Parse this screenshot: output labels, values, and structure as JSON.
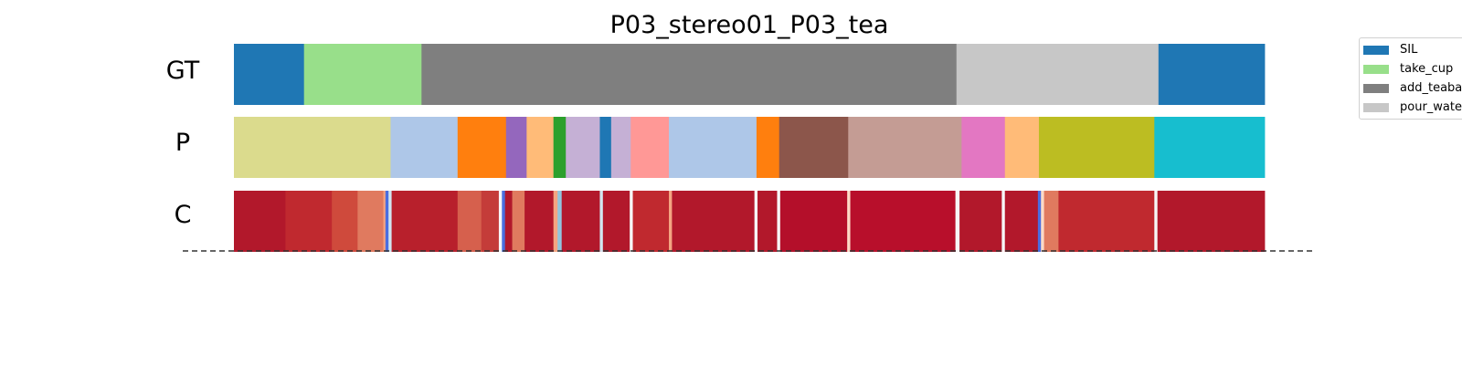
{
  "chart_data": {
    "type": "segmentation",
    "title": "P03_stereo01_P03_tea",
    "xlim": [
      0,
      1000
    ],
    "rows": [
      {
        "label": "GT",
        "segments": [
          {
            "start": 0,
            "end": 68,
            "color": "#1f77b4"
          },
          {
            "start": 68,
            "end": 182,
            "color": "#98df8a"
          },
          {
            "start": 182,
            "end": 701,
            "color": "#7f7f7f"
          },
          {
            "start": 701,
            "end": 897,
            "color": "#c7c7c7"
          },
          {
            "start": 897,
            "end": 1000,
            "color": "#1f77b4"
          }
        ]
      },
      {
        "label": "P",
        "segments": [
          {
            "start": 0,
            "end": 152,
            "color": "#dbdb8d"
          },
          {
            "start": 152,
            "end": 217,
            "color": "#aec7e8"
          },
          {
            "start": 217,
            "end": 264,
            "color": "#ff7f0e"
          },
          {
            "start": 264,
            "end": 284,
            "color": "#9467bd"
          },
          {
            "start": 284,
            "end": 310,
            "color": "#ffbb78"
          },
          {
            "start": 310,
            "end": 322,
            "color": "#2ca02c"
          },
          {
            "start": 322,
            "end": 355,
            "color": "#c5b0d5"
          },
          {
            "start": 355,
            "end": 366,
            "color": "#1f77b4"
          },
          {
            "start": 366,
            "end": 385,
            "color": "#c5b0d5"
          },
          {
            "start": 385,
            "end": 422,
            "color": "#ff9896"
          },
          {
            "start": 422,
            "end": 507,
            "color": "#aec7e8"
          },
          {
            "start": 507,
            "end": 529,
            "color": "#ff7f0e"
          },
          {
            "start": 529,
            "end": 596,
            "color": "#8c564b"
          },
          {
            "start": 596,
            "end": 706,
            "color": "#c49c94"
          },
          {
            "start": 706,
            "end": 748,
            "color": "#e377c2"
          },
          {
            "start": 748,
            "end": 781,
            "color": "#ffbb78"
          },
          {
            "start": 781,
            "end": 893,
            "color": "#bcbd22"
          },
          {
            "start": 893,
            "end": 1000,
            "color": "#17becf"
          }
        ]
      },
      {
        "label": "C",
        "segments": [
          {
            "start": 0,
            "end": 50,
            "color": "#b2182b"
          },
          {
            "start": 50,
            "end": 95,
            "color": "#c0292f"
          },
          {
            "start": 95,
            "end": 120,
            "color": "#cf4a3c"
          },
          {
            "start": 120,
            "end": 145,
            "color": "#e07a5f"
          },
          {
            "start": 145,
            "end": 147,
            "color": "#f4a582"
          },
          {
            "start": 147,
            "end": 150,
            "color": "#4a6ee0"
          },
          {
            "start": 150,
            "end": 153,
            "color": "#d1e5f0"
          },
          {
            "start": 153,
            "end": 217,
            "color": "#b8202c"
          },
          {
            "start": 217,
            "end": 240,
            "color": "#d6604d"
          },
          {
            "start": 240,
            "end": 257,
            "color": "#c43c39"
          },
          {
            "start": 257,
            "end": 260,
            "color": "#f7f7f7"
          },
          {
            "start": 260,
            "end": 263,
            "color": "#4a6ee0"
          },
          {
            "start": 263,
            "end": 270,
            "color": "#b2182b"
          },
          {
            "start": 270,
            "end": 282,
            "color": "#e07a5f"
          },
          {
            "start": 282,
            "end": 310,
            "color": "#b2182b"
          },
          {
            "start": 310,
            "end": 314,
            "color": "#f4a582"
          },
          {
            "start": 314,
            "end": 318,
            "color": "#92c5de"
          },
          {
            "start": 318,
            "end": 355,
            "color": "#b2182b"
          },
          {
            "start": 355,
            "end": 358,
            "color": "#d1e5f0"
          },
          {
            "start": 358,
            "end": 384,
            "color": "#b2182b"
          },
          {
            "start": 384,
            "end": 387,
            "color": "#f7f7f7"
          },
          {
            "start": 387,
            "end": 422,
            "color": "#c0292f"
          },
          {
            "start": 422,
            "end": 425,
            "color": "#f4a582"
          },
          {
            "start": 425,
            "end": 505,
            "color": "#b2182b"
          },
          {
            "start": 505,
            "end": 508,
            "color": "#f7f7f7"
          },
          {
            "start": 508,
            "end": 527,
            "color": "#b2182b"
          },
          {
            "start": 527,
            "end": 530,
            "color": "#f7f7f7"
          },
          {
            "start": 530,
            "end": 595,
            "color": "#b40f2a"
          },
          {
            "start": 595,
            "end": 598,
            "color": "#fddbc7"
          },
          {
            "start": 598,
            "end": 700,
            "color": "#b80f2b"
          },
          {
            "start": 700,
            "end": 704,
            "color": "#f7f7f7"
          },
          {
            "start": 704,
            "end": 745,
            "color": "#b2182b"
          },
          {
            "start": 745,
            "end": 748,
            "color": "#f7f7f7"
          },
          {
            "start": 748,
            "end": 780,
            "color": "#b2182b"
          },
          {
            "start": 780,
            "end": 783,
            "color": "#4a6ee0"
          },
          {
            "start": 783,
            "end": 786,
            "color": "#fddbc7"
          },
          {
            "start": 786,
            "end": 800,
            "color": "#e07a5f"
          },
          {
            "start": 800,
            "end": 893,
            "color": "#c0292f"
          },
          {
            "start": 893,
            "end": 896,
            "color": "#f7f7f7"
          },
          {
            "start": 896,
            "end": 1000,
            "color": "#b2182b"
          }
        ]
      }
    ],
    "legend": {
      "placement": "top-right",
      "entries": [
        {
          "name": "SIL",
          "color": "#1f77b4"
        },
        {
          "name": "take_cup",
          "color": "#98df8a"
        },
        {
          "name": "add_teabag",
          "color": "#7f7f7f"
        },
        {
          "name": "pour_water",
          "color": "#c7c7c7"
        }
      ]
    },
    "separator": {
      "style": "dashed",
      "color": "#333333"
    }
  }
}
